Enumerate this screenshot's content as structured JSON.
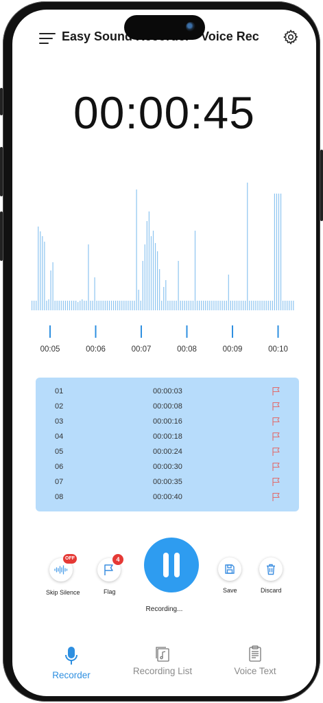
{
  "header": {
    "title": "Easy Sound Recorder - Voice Rec",
    "menu_icon": "hamburger-menu-icon",
    "settings_icon": "gear-icon"
  },
  "timer": "00:00:45",
  "waveform": {
    "color": "#8cc4f0",
    "axis_labels": [
      "00:05",
      "00:06",
      "00:07",
      "00:08",
      "00:09",
      "00:10"
    ],
    "tick_color": "#2e8fe0"
  },
  "flags": {
    "background": "#b7dcfb",
    "flag_color": "#e06a6a",
    "rows": [
      {
        "num": "01",
        "time": "00:00:03"
      },
      {
        "num": "02",
        "time": "00:00:08"
      },
      {
        "num": "03",
        "time": "00:00:16"
      },
      {
        "num": "04",
        "time": "00:00:18"
      },
      {
        "num": "05",
        "time": "00:00:24"
      },
      {
        "num": "06",
        "time": "00:00:30"
      },
      {
        "num": "07",
        "time": "00:00:35"
      },
      {
        "num": "08",
        "time": "00:00:40"
      }
    ]
  },
  "controls": {
    "skip_silence": {
      "label": "Skip Silence",
      "badge": "OFF"
    },
    "flag": {
      "label": "Flag",
      "badge": "4"
    },
    "save": {
      "label": "Save"
    },
    "discard": {
      "label": "Discard"
    },
    "status": "Recording..."
  },
  "nav": {
    "accent": "#2e8fe0",
    "items": [
      {
        "label": "Recorder",
        "icon": "microphone-icon",
        "active": true
      },
      {
        "label": "Recording List",
        "icon": "music-file-icon",
        "active": false
      },
      {
        "label": "Voice Text",
        "icon": "document-text-icon",
        "active": false
      }
    ]
  }
}
